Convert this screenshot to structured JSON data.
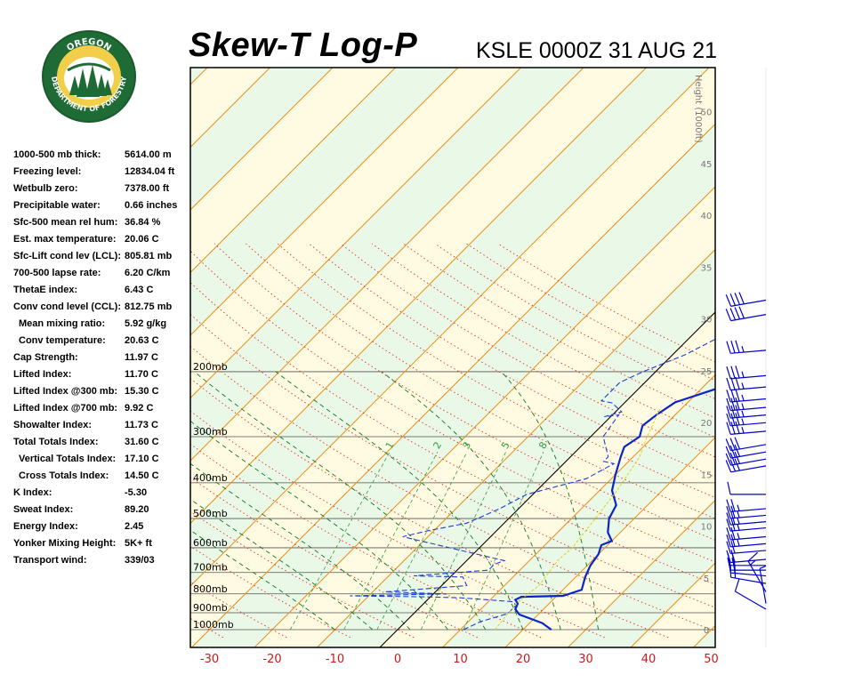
{
  "header": {
    "title": "Skew-T Log-P",
    "station_time": "KSLE 0000Z 31 AUG 21"
  },
  "logo": {
    "top_text": "OREGON",
    "ring_text": "DEPARTMENT OF FORESTRY",
    "ring_color": "#1f6b36",
    "inner_color": "#f2cf4a"
  },
  "indices": [
    {
      "label": "1000-500 mb thick:",
      "value": "5614.00 m",
      "indent": false
    },
    {
      "label": "Freezing level:",
      "value": "12834.04 ft",
      "indent": false
    },
    {
      "label": "Wetbulb zero:",
      "value": "7378.00 ft",
      "indent": false
    },
    {
      "label": "Precipitable water:",
      "value": "0.66 inches",
      "indent": false
    },
    {
      "label": "Sfc-500 mean rel hum:",
      "value": "36.84 %",
      "indent": false
    },
    {
      "label": "Est. max temperature:",
      "value": "20.06 C",
      "indent": false
    },
    {
      "label": "Sfc-Lift cond lev (LCL):",
      "value": "805.81 mb",
      "indent": false
    },
    {
      "label": "700-500 lapse rate:",
      "value": "6.20 C/km",
      "indent": false
    },
    {
      "label": "ThetaE index:",
      "value": "6.43 C",
      "indent": false
    },
    {
      "label": "Conv cond level (CCL):",
      "value": "812.75 mb",
      "indent": false
    },
    {
      "label": "Mean mixing ratio:",
      "value": "5.92 g/kg",
      "indent": true
    },
    {
      "label": "Conv temperature:",
      "value": "20.63 C",
      "indent": true
    },
    {
      "label": "Cap Strength:",
      "value": "11.97 C",
      "indent": false
    },
    {
      "label": "Lifted Index:",
      "value": "11.70 C",
      "indent": false
    },
    {
      "label": "Lifted Index @300 mb:",
      "value": "15.30 C",
      "indent": false
    },
    {
      "label": "Lifted Index @700 mb:",
      "value": "9.92 C",
      "indent": false
    },
    {
      "label": "Showalter Index:",
      "value": "11.73 C",
      "indent": false
    },
    {
      "label": "Total Totals Index:",
      "value": "31.60 C",
      "indent": false
    },
    {
      "label": "Vertical Totals Index:",
      "value": "17.10 C",
      "indent": true
    },
    {
      "label": "Cross Totals Index:",
      "value": "14.50 C",
      "indent": true
    },
    {
      "label": "K Index:",
      "value": "-5.30",
      "indent": false
    },
    {
      "label": "Sweat Index:",
      "value": "89.20",
      "indent": false
    },
    {
      "label": "Energy Index:",
      "value": "2.45",
      "indent": false
    },
    {
      "label": "Yonker Mixing Height:",
      "value": "5K+ ft",
      "indent": false
    },
    {
      "label": "Transport wind:",
      "value": "339/03",
      "indent": false
    }
  ],
  "chart_data": {
    "type": "line",
    "title": "Skew-T Log-P",
    "xlabel": "",
    "ylabel": "",
    "x_ticks": [
      "-30",
      "-20",
      "-10",
      "0",
      "10",
      "20",
      "30",
      "40",
      "50"
    ],
    "x_tick_values": [
      -30,
      -20,
      -10,
      0,
      10,
      20,
      30,
      40,
      50
    ],
    "pressure_levels": [
      {
        "label": "200mb",
        "p": 200
      },
      {
        "label": "300mb",
        "p": 300
      },
      {
        "label": "400mb",
        "p": 400
      },
      {
        "label": "500mb",
        "p": 500
      },
      {
        "label": "600mb",
        "p": 600
      },
      {
        "label": "700mb",
        "p": 700
      },
      {
        "label": "800mb",
        "p": 800
      },
      {
        "label": "900mb",
        "p": 900
      },
      {
        "label": "1000mb",
        "p": 1000
      }
    ],
    "height_axis_label": "Height (1000ft)",
    "height_ticks": [
      "50",
      "45",
      "40",
      "35",
      "30",
      "25",
      "20",
      "15",
      "10",
      "5",
      "0"
    ],
    "height_tick_values": [
      50,
      45,
      40,
      35,
      30,
      25,
      20,
      15,
      10,
      5,
      0
    ],
    "mixing_ratio_labels": [
      "1",
      "2",
      "3",
      "5",
      "8"
    ],
    "series": [
      {
        "name": "Temperature",
        "color": "#0a24c8",
        "points": [
          [
            24.5,
            1000
          ],
          [
            22,
            960
          ],
          [
            17,
            910
          ],
          [
            15.5,
            880
          ],
          [
            15,
            850
          ],
          [
            14,
            830
          ],
          [
            14.5,
            815
          ],
          [
            21,
            810
          ],
          [
            23,
            780
          ],
          [
            21.5,
            720
          ],
          [
            20.5,
            670
          ],
          [
            20,
            625
          ],
          [
            19,
            590
          ],
          [
            20,
            575
          ],
          [
            18,
            545
          ],
          [
            16,
            500
          ],
          [
            15,
            460
          ],
          [
            12,
            420
          ],
          [
            10,
            380
          ],
          [
            8,
            340
          ],
          [
            7,
            320
          ],
          [
            7.8,
            300
          ],
          [
            6.5,
            280
          ],
          [
            7,
            262
          ],
          [
            8,
            242
          ],
          [
            13,
            220
          ],
          [
            19,
            175
          ],
          [
            28,
            120
          ]
        ]
      },
      {
        "name": "Dew Point",
        "color": "#1f3ed6",
        "points": [
          [
            10.5,
            1000
          ],
          [
            12,
            950
          ],
          [
            15,
            905
          ],
          [
            15,
            860
          ],
          [
            14,
            840
          ],
          [
            5,
            820
          ],
          [
            -1,
            815
          ],
          [
            -13,
            810
          ],
          [
            2,
            800
          ],
          [
            -8,
            790
          ],
          [
            4,
            760
          ],
          [
            2,
            720
          ],
          [
            -6,
            715
          ],
          [
            5,
            690
          ],
          [
            5,
            665
          ],
          [
            6,
            650
          ],
          [
            -14,
            560
          ],
          [
            -11,
            540
          ],
          [
            -6,
            515
          ],
          [
            -5,
            500
          ],
          [
            -3,
            470
          ],
          [
            -1,
            430
          ],
          [
            6,
            390
          ],
          [
            8,
            355
          ],
          [
            6,
            350
          ],
          [
            6,
            340
          ],
          [
            2,
            300
          ],
          [
            1,
            262
          ],
          [
            -1,
            265
          ],
          [
            1,
            257
          ],
          [
            -2,
            243
          ],
          [
            -4,
            240
          ],
          [
            -4,
            214
          ],
          [
            -2,
            200
          ],
          [
            2,
            180
          ],
          [
            8,
            140
          ],
          [
            9,
            100
          ],
          [
            12,
            74
          ]
        ]
      },
      {
        "name": "Parcel",
        "color": "#e0d018",
        "points": [
          [
            15.5,
            1000
          ],
          [
            15,
            900
          ],
          [
            14.8,
            835
          ],
          [
            15.5,
            760
          ],
          [
            15,
            700
          ],
          [
            14.5,
            650
          ],
          [
            14.8,
            600
          ],
          [
            14.3,
            550
          ],
          [
            13.8,
            500
          ],
          [
            12.8,
            420
          ],
          [
            11,
            340
          ],
          [
            9,
            300
          ],
          [
            6.5,
            250
          ]
        ]
      }
    ],
    "winds": [
      {
        "p": 880,
        "speed_kt": 10,
        "dir_deg": 300
      },
      {
        "p": 850,
        "speed_kt": 5,
        "dir_deg": 350
      },
      {
        "p": 790,
        "speed_kt": 15,
        "dir_deg": 330
      },
      {
        "p": 750,
        "speed_kt": 20,
        "dir_deg": 280
      },
      {
        "p": 715,
        "speed_kt": 20,
        "dir_deg": 275
      },
      {
        "p": 690,
        "speed_kt": 20,
        "dir_deg": 270
      },
      {
        "p": 670,
        "speed_kt": 20,
        "dir_deg": 270
      },
      {
        "p": 645,
        "speed_kt": 20,
        "dir_deg": 265
      },
      {
        "p": 610,
        "speed_kt": 20,
        "dir_deg": 265
      },
      {
        "p": 585,
        "speed_kt": 25,
        "dir_deg": 265
      },
      {
        "p": 560,
        "speed_kt": 25,
        "dir_deg": 265
      },
      {
        "p": 530,
        "speed_kt": 25,
        "dir_deg": 265
      },
      {
        "p": 510,
        "speed_kt": 25,
        "dir_deg": 265
      },
      {
        "p": 490,
        "speed_kt": 25,
        "dir_deg": 265
      },
      {
        "p": 470,
        "speed_kt": 25,
        "dir_deg": 265
      },
      {
        "p": 430,
        "speed_kt": 10,
        "dir_deg": 270
      },
      {
        "p": 360,
        "speed_kt": 30,
        "dir_deg": 260
      },
      {
        "p": 345,
        "speed_kt": 30,
        "dir_deg": 260
      },
      {
        "p": 330,
        "speed_kt": 30,
        "dir_deg": 260
      },
      {
        "p": 315,
        "speed_kt": 30,
        "dir_deg": 260
      },
      {
        "p": 290,
        "speed_kt": 35,
        "dir_deg": 265
      },
      {
        "p": 275,
        "speed_kt": 35,
        "dir_deg": 265
      },
      {
        "p": 262,
        "speed_kt": 35,
        "dir_deg": 265
      },
      {
        "p": 250,
        "speed_kt": 35,
        "dir_deg": 265
      },
      {
        "p": 237,
        "speed_kt": 35,
        "dir_deg": 265
      },
      {
        "p": 220,
        "speed_kt": 35,
        "dir_deg": 265
      },
      {
        "p": 205,
        "speed_kt": 35,
        "dir_deg": 265
      },
      {
        "p": 175,
        "speed_kt": 35,
        "dir_deg": 265
      },
      {
        "p": 140,
        "speed_kt": 40,
        "dir_deg": 260
      },
      {
        "p": 128,
        "speed_kt": 40,
        "dir_deg": 260
      }
    ],
    "colors": {
      "isobar": "#555555",
      "isotherm": "#e8901c",
      "dry_adiabat": "#e8301c",
      "moist_adiabat": "#0a7a20",
      "mixing_ratio": "#30a040",
      "band_warm": "#fffbe2",
      "band_cool": "#eaf8e8",
      "wind_barb": "#0000cc",
      "x_tick_text": "#d01818",
      "height_text": "#777777"
    }
  }
}
